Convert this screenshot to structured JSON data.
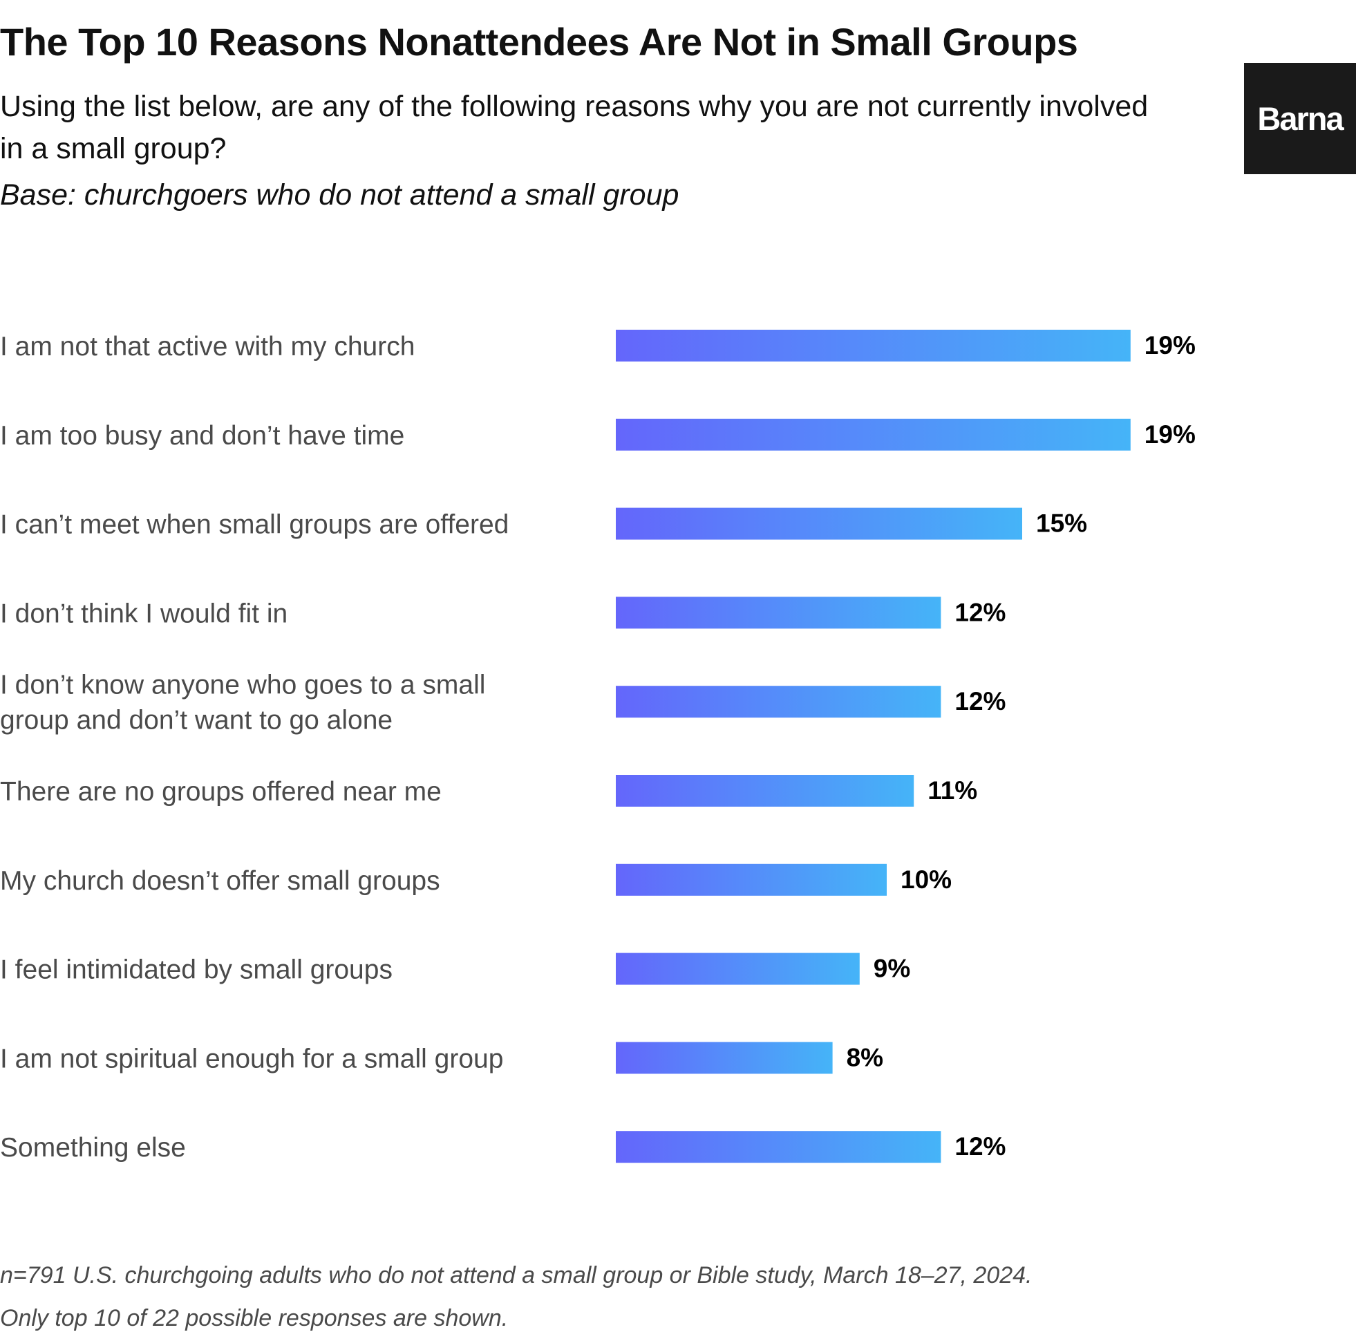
{
  "header": {
    "title": "The Top 10 Reasons Nonattendees Are Not in Small Groups",
    "question": "Using the list below, are any of the following reasons why you are not currently involved in a small group?",
    "base": "Base: churchgoers who do not attend a small group"
  },
  "logo": {
    "text": "Barna"
  },
  "footnotes": {
    "line1": "n=791 U.S. churchgoing adults who do not attend a small group or Bible study, March 18–27, 2024.",
    "line2": "Only top 10 of 22 possible responses are shown."
  },
  "colors": {
    "bar_gradient_start": "#6466fb",
    "bar_gradient_end": "#45b4f8",
    "category_label": "#4a4a4a",
    "value_label": "#000000"
  },
  "chart_data": {
    "type": "bar",
    "orientation": "horizontal",
    "categories": [
      "I am not that active with my church",
      "I am too busy and don’t have time",
      "I can’t meet when small groups are offered",
      "I don’t think I would fit in",
      "I don’t know anyone who goes to a small group and don’t want to go alone",
      "There are no groups offered near me",
      "My church doesn’t offer small groups",
      "I feel intimidated by small groups",
      "I am not spiritual enough for a small group",
      "Something else"
    ],
    "category_lines": [
      [
        "I am not that active with my church"
      ],
      [
        "I am too busy and don’t have time"
      ],
      [
        "I can’t meet when small groups are offered"
      ],
      [
        "I don’t think I would fit in"
      ],
      [
        "I don’t know anyone who goes to a small",
        "group and don’t want to go alone"
      ],
      [
        "There are no groups offered near me"
      ],
      [
        "My church doesn’t offer small groups"
      ],
      [
        "I feel intimidated by small groups"
      ],
      [
        "I am not spiritual enough for a small group"
      ],
      [
        "Something else"
      ]
    ],
    "values": [
      19,
      19,
      15,
      12,
      12,
      11,
      10,
      9,
      8,
      12
    ],
    "value_labels": [
      "19%",
      "19%",
      "15%",
      "12%",
      "12%",
      "11%",
      "10%",
      "9%",
      "8%",
      "12%"
    ],
    "unit": "%",
    "grid": false,
    "legend": "none"
  }
}
